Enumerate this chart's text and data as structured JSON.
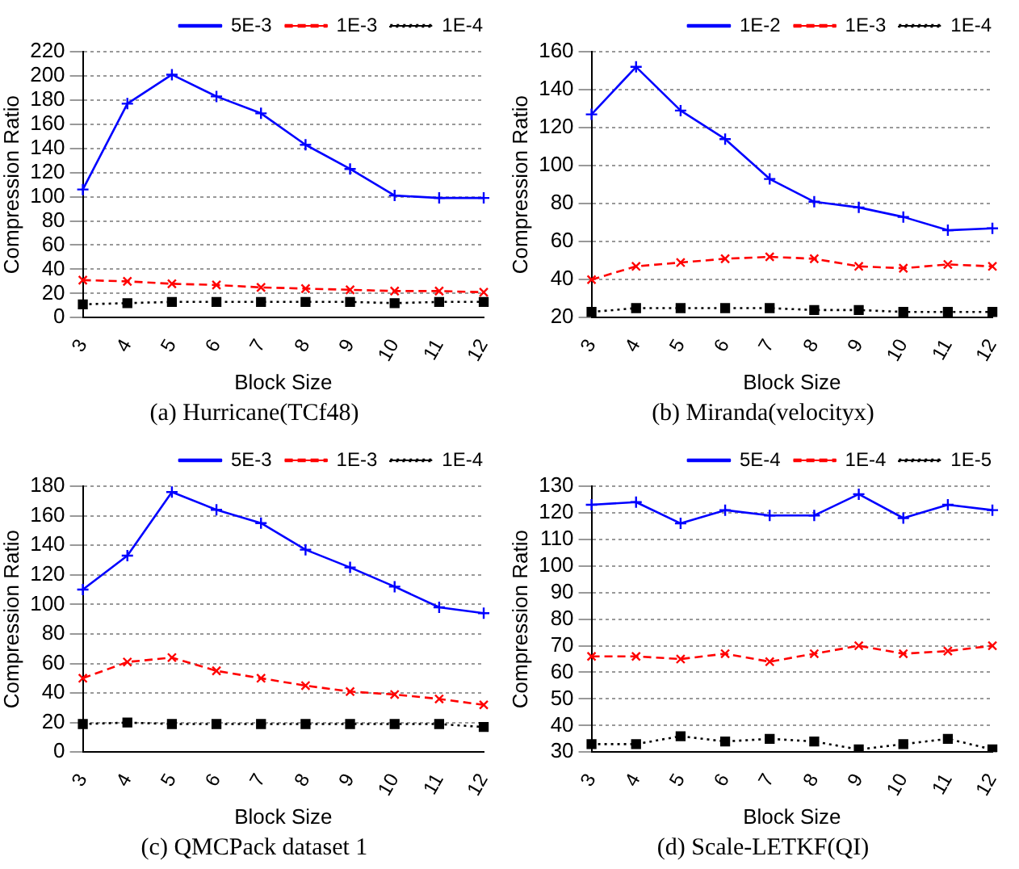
{
  "chart_data": [
    {
      "type": "line",
      "title": "(a)  Hurricane(TCf48)",
      "xlabel": "Block Size",
      "ylabel": "Compression Ratio",
      "categories": [
        "3",
        "4",
        "5",
        "6",
        "7",
        "8",
        "9",
        "10",
        "11",
        "12"
      ],
      "ylim": [
        0,
        220
      ],
      "yticks": [
        0,
        20,
        40,
        60,
        80,
        100,
        120,
        140,
        160,
        180,
        200,
        220
      ],
      "grid": "y",
      "legend": "top right",
      "series": [
        {
          "name": "5E-3",
          "color": "#0000ff",
          "marker": "cross",
          "line_style": "solid",
          "values": [
            106,
            177,
            201,
            183,
            169,
            143,
            123,
            101,
            99,
            99
          ]
        },
        {
          "name": "1E-3",
          "color": "#ff0000",
          "marker": "cross",
          "line_style": "dashed",
          "values": [
            31,
            30,
            28,
            27,
            25,
            24,
            23,
            22,
            22,
            21
          ]
        },
        {
          "name": "1E-4",
          "color": "#000000",
          "marker": "square",
          "line_style": "dotted",
          "values": [
            11,
            12,
            13,
            13,
            13,
            13,
            13,
            12,
            13,
            13
          ]
        }
      ]
    },
    {
      "type": "line",
      "title": "(b)  Miranda(velocityx)",
      "xlabel": "Block Size",
      "ylabel": "Compression Ratio",
      "categories": [
        "3",
        "4",
        "5",
        "6",
        "7",
        "8",
        "9",
        "10",
        "11",
        "12"
      ],
      "ylim": [
        20,
        160
      ],
      "yticks": [
        20,
        40,
        60,
        80,
        100,
        120,
        140,
        160
      ],
      "grid": "y",
      "legend": "top right",
      "series": [
        {
          "name": "1E-2",
          "color": "#0000ff",
          "marker": "cross",
          "line_style": "solid",
          "values": [
            127,
            152,
            129,
            114,
            93,
            81,
            78,
            73,
            66,
            67
          ]
        },
        {
          "name": "1E-3",
          "color": "#ff0000",
          "marker": "cross",
          "line_style": "dashed",
          "values": [
            40,
            47,
            49,
            51,
            52,
            51,
            47,
            46,
            48,
            47
          ]
        },
        {
          "name": "1E-4",
          "color": "#000000",
          "marker": "square",
          "line_style": "dotted",
          "values": [
            23,
            25,
            25,
            25,
            25,
            24,
            24,
            23,
            23,
            23
          ]
        }
      ]
    },
    {
      "type": "line",
      "title": "(c)  QMCPack dataset 1",
      "xlabel": "Block Size",
      "ylabel": "Compression Ratio",
      "categories": [
        "3",
        "4",
        "5",
        "6",
        "7",
        "8",
        "9",
        "10",
        "11",
        "12"
      ],
      "ylim": [
        0,
        180
      ],
      "yticks": [
        0,
        20,
        40,
        60,
        80,
        100,
        120,
        140,
        160,
        180
      ],
      "grid": "y",
      "legend": "top right",
      "series": [
        {
          "name": "5E-3",
          "color": "#0000ff",
          "marker": "cross",
          "line_style": "solid",
          "values": [
            110,
            133,
            176,
            164,
            155,
            137,
            125,
            112,
            98,
            94
          ]
        },
        {
          "name": "1E-3",
          "color": "#ff0000",
          "marker": "cross",
          "line_style": "dashed",
          "values": [
            50,
            61,
            64,
            55,
            50,
            45,
            41,
            39,
            36,
            32
          ]
        },
        {
          "name": "1E-4",
          "color": "#000000",
          "marker": "square",
          "line_style": "dotted",
          "values": [
            19,
            20,
            19,
            19,
            19,
            19,
            19,
            19,
            19,
            17
          ]
        }
      ]
    },
    {
      "type": "line",
      "title": "(d)  Scale-LETKF(QI)",
      "xlabel": "Block Size",
      "ylabel": "Compression Ratio",
      "categories": [
        "3",
        "4",
        "5",
        "6",
        "7",
        "8",
        "9",
        "10",
        "11",
        "12"
      ],
      "ylim": [
        30,
        130
      ],
      "yticks": [
        30,
        40,
        50,
        60,
        70,
        80,
        90,
        100,
        110,
        120,
        130
      ],
      "grid": "y",
      "legend": "top right",
      "series": [
        {
          "name": "5E-4",
          "color": "#0000ff",
          "marker": "cross",
          "line_style": "solid",
          "values": [
            123,
            124,
            116,
            121,
            119,
            119,
            127,
            118,
            123,
            121
          ]
        },
        {
          "name": "1E-4",
          "color": "#ff0000",
          "marker": "cross",
          "line_style": "dashed",
          "values": [
            66,
            66,
            65,
            67,
            64,
            67,
            70,
            67,
            68,
            70
          ]
        },
        {
          "name": "1E-5",
          "color": "#000000",
          "marker": "square",
          "line_style": "dotted",
          "values": [
            33,
            33,
            36,
            34,
            35,
            34,
            31,
            33,
            35,
            31
          ]
        }
      ]
    }
  ]
}
